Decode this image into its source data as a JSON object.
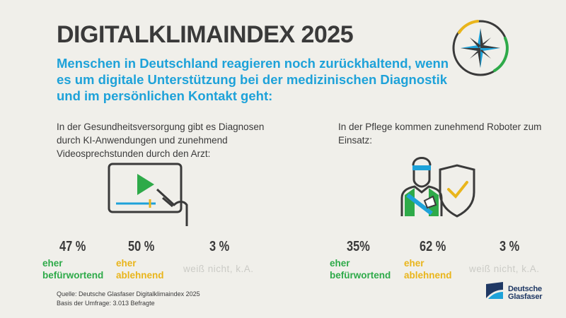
{
  "header": {
    "title": "DIGITALKLIMAINDEX 2025",
    "subtitle": "Menschen in Deutschland reagieren noch zurückhaltend, wenn es um digitale Unterstützung bei der medizinischen Diagnostik und im persönlichen Kontakt geht:"
  },
  "icons": {
    "header": "compass-icon",
    "left": "video-tablet-icon",
    "right": "robot-caregiver-shield-icon",
    "logo": "deutsche-glasfaser-logo"
  },
  "colors": {
    "background": "#f0efea",
    "title": "#3a3a3a",
    "subtitle": "#1ea2d9",
    "positive": "#2eaa49",
    "negative": "#e9b51b",
    "unknown": "#cbcbc6",
    "logo": "#1f3864"
  },
  "chart_data": [
    {
      "type": "table",
      "title": "In der Gesundheitsversorgung gibt es Diagnosen durch KI-Anwendungen und zunehmend Videosprechstunden durch den Arzt:",
      "categories": [
        "eher befürwortend",
        "eher ablehnend",
        "weiß nicht, k.A."
      ],
      "values": [
        47,
        50,
        3
      ],
      "labels": [
        "47 %",
        "50 %",
        "3 %"
      ],
      "unit": "%"
    },
    {
      "type": "table",
      "title": "In der Pflege kommen zunehmend Roboter zum Einsatz:",
      "categories": [
        "eher befürwortend",
        "eher ablehnend",
        "weiß nicht, k.A."
      ],
      "values": [
        35,
        62,
        3
      ],
      "labels": [
        "35%",
        "62 %",
        "3 %"
      ],
      "unit": "%"
    }
  ],
  "panels": {
    "left": {
      "stats": [
        {
          "value": "47 %",
          "label_1": "eher",
          "label_2": "befürwortend"
        },
        {
          "value": "50 %",
          "label_1": "eher",
          "label_2": "ablehnend"
        },
        {
          "value": "3 %",
          "label_1": "weiß nicht, k.A."
        }
      ]
    },
    "right": {
      "stats": [
        {
          "value": "35%",
          "label_1": "eher",
          "label_2": "befürwortend"
        },
        {
          "value": "62 %",
          "label_1": "eher",
          "label_2": "ablehnend"
        },
        {
          "value": "3 %",
          "label_1": "weiß nicht, k.A."
        }
      ]
    }
  },
  "footer": {
    "source": "Quelle: Deutsche Glasfaser Digitalklimaindex 2025",
    "base": "Basis der Umfrage: 3.013 Befragte",
    "logo_line1": "Deutsche",
    "logo_line2": "Glasfaser"
  }
}
